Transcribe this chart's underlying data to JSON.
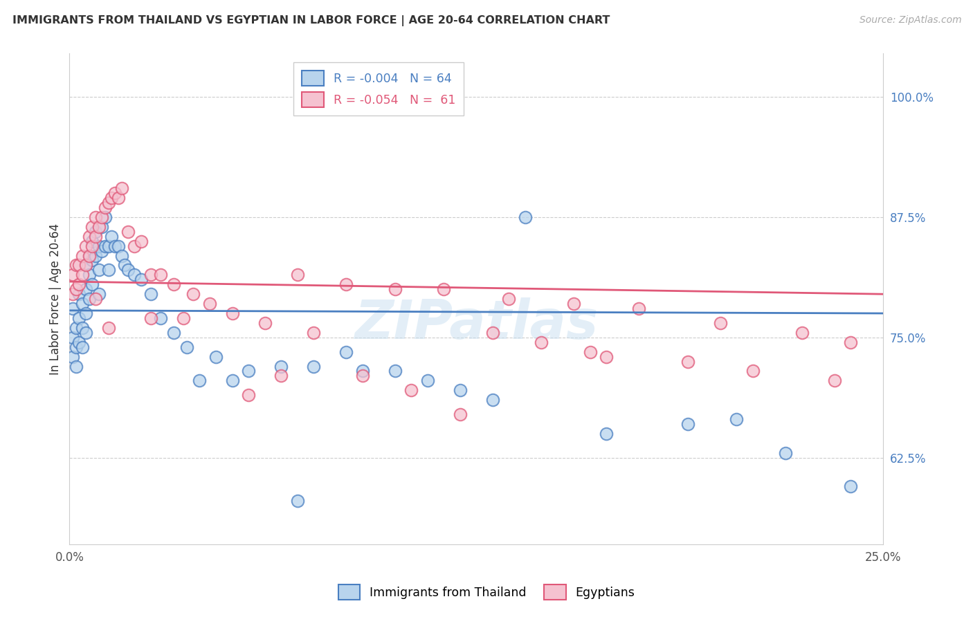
{
  "title": "IMMIGRANTS FROM THAILAND VS EGYPTIAN IN LABOR FORCE | AGE 20-64 CORRELATION CHART",
  "source": "Source: ZipAtlas.com",
  "ylabel": "In Labor Force | Age 20-64",
  "xlim": [
    0.0,
    0.25
  ],
  "ylim": [
    0.535,
    1.045
  ],
  "yticks": [
    0.625,
    0.75,
    0.875,
    1.0
  ],
  "ytick_labels": [
    "62.5%",
    "75.0%",
    "87.5%",
    "100.0%"
  ],
  "xticks": [
    0.0,
    0.25
  ],
  "xtick_labels": [
    "0.0%",
    "25.0%"
  ],
  "r_thailand": -0.004,
  "n_thailand": 64,
  "r_egypt": -0.054,
  "n_egypt": 61,
  "color_thailand": "#b8d4ed",
  "color_egypt": "#f5c2d0",
  "line_color_thailand": "#4a7fc1",
  "line_color_egypt": "#e05878",
  "watermark": "ZIPatlas",
  "thai_x": [
    0.001,
    0.001,
    0.001,
    0.002,
    0.002,
    0.002,
    0.003,
    0.003,
    0.003,
    0.004,
    0.004,
    0.004,
    0.005,
    0.005,
    0.005,
    0.005,
    0.006,
    0.006,
    0.006,
    0.007,
    0.007,
    0.007,
    0.008,
    0.008,
    0.009,
    0.009,
    0.009,
    0.01,
    0.01,
    0.011,
    0.011,
    0.012,
    0.012,
    0.013,
    0.014,
    0.015,
    0.016,
    0.017,
    0.018,
    0.02,
    0.022,
    0.025,
    0.028,
    0.032,
    0.036,
    0.04,
    0.045,
    0.05,
    0.055,
    0.065,
    0.075,
    0.085,
    0.1,
    0.11,
    0.12,
    0.13,
    0.14,
    0.165,
    0.19,
    0.205,
    0.22,
    0.24,
    0.09,
    0.07
  ],
  "thai_y": [
    0.78,
    0.75,
    0.73,
    0.76,
    0.74,
    0.72,
    0.795,
    0.77,
    0.745,
    0.785,
    0.76,
    0.74,
    0.825,
    0.8,
    0.775,
    0.755,
    0.835,
    0.815,
    0.79,
    0.85,
    0.83,
    0.805,
    0.86,
    0.835,
    0.845,
    0.82,
    0.795,
    0.865,
    0.84,
    0.875,
    0.845,
    0.845,
    0.82,
    0.855,
    0.845,
    0.845,
    0.835,
    0.825,
    0.82,
    0.815,
    0.81,
    0.795,
    0.77,
    0.755,
    0.74,
    0.705,
    0.73,
    0.705,
    0.715,
    0.72,
    0.72,
    0.735,
    0.715,
    0.705,
    0.695,
    0.685,
    0.875,
    0.65,
    0.66,
    0.665,
    0.63,
    0.595,
    0.715,
    0.58
  ],
  "egypt_x": [
    0.001,
    0.001,
    0.002,
    0.002,
    0.003,
    0.003,
    0.004,
    0.004,
    0.005,
    0.005,
    0.006,
    0.006,
    0.007,
    0.007,
    0.008,
    0.008,
    0.009,
    0.01,
    0.011,
    0.012,
    0.013,
    0.014,
    0.015,
    0.016,
    0.018,
    0.02,
    0.022,
    0.025,
    0.028,
    0.032,
    0.038,
    0.043,
    0.05,
    0.06,
    0.07,
    0.085,
    0.1,
    0.115,
    0.135,
    0.155,
    0.175,
    0.2,
    0.225,
    0.24,
    0.13,
    0.145,
    0.16,
    0.19,
    0.21,
    0.235,
    0.025,
    0.035,
    0.008,
    0.012,
    0.055,
    0.065,
    0.075,
    0.09,
    0.105,
    0.12,
    0.165
  ],
  "egypt_y": [
    0.815,
    0.795,
    0.825,
    0.8,
    0.825,
    0.805,
    0.835,
    0.815,
    0.845,
    0.825,
    0.855,
    0.835,
    0.865,
    0.845,
    0.875,
    0.855,
    0.865,
    0.875,
    0.885,
    0.89,
    0.895,
    0.9,
    0.895,
    0.905,
    0.86,
    0.845,
    0.85,
    0.815,
    0.815,
    0.805,
    0.795,
    0.785,
    0.775,
    0.765,
    0.815,
    0.805,
    0.8,
    0.8,
    0.79,
    0.785,
    0.78,
    0.765,
    0.755,
    0.745,
    0.755,
    0.745,
    0.735,
    0.725,
    0.715,
    0.705,
    0.77,
    0.77,
    0.79,
    0.76,
    0.69,
    0.71,
    0.755,
    0.71,
    0.695,
    0.67,
    0.73
  ]
}
